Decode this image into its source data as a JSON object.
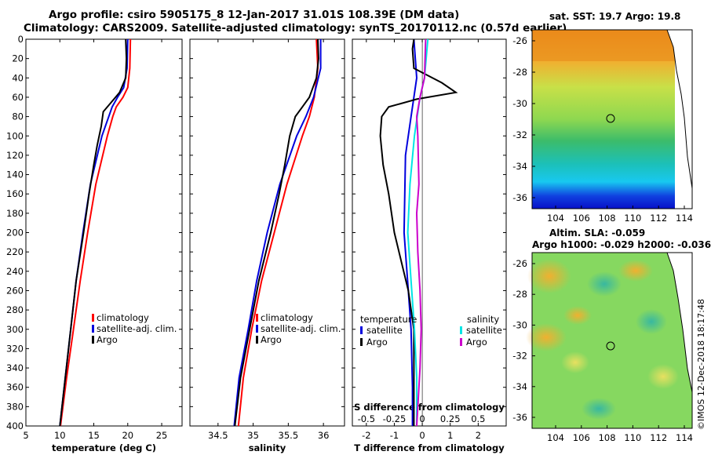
{
  "titles": {
    "line1": "Argo profile: csiro 5905175_8 12-Jan-2017 31.01S 108.39E (DM data)",
    "line2": "Climatology: CARS2009. Satellite-adjusted climatology: synTS_20170112.nc (0.57d earlier)",
    "sst": "sat. SST: 19.7 Argo: 19.8",
    "sla1": "Altim. SLA: -0.059",
    "sla2": "Argo h1000: -0.029 h2000: -0.036",
    "credit": "©IMOS 12-Dec-2018 18:17:48"
  },
  "colors": {
    "clim": "#ff0000",
    "sat": "#0000dd",
    "argo": "#000000",
    "sal_sat": "#00e5e5",
    "sal_argo": "#cc00cc"
  },
  "chart_data": [
    {
      "type": "line",
      "name": "temperature",
      "xlabel": "temperature (deg C)",
      "ylabel": "",
      "xlim": [
        5,
        28
      ],
      "ylim": [
        400,
        0
      ],
      "xticks": [
        "5",
        "10",
        "15",
        "20",
        "25"
      ],
      "yticks": [
        "0",
        "20",
        "40",
        "60",
        "80",
        "100",
        "120",
        "140",
        "160",
        "180",
        "200",
        "220",
        "240",
        "260",
        "280",
        "300",
        "320",
        "340",
        "360",
        "380",
        "400"
      ],
      "legend": [
        "climatology",
        "satellite-adj. clim.",
        "Argo"
      ],
      "series": [
        {
          "name": "climatology",
          "depth": [
            0,
            30,
            50,
            60,
            70,
            80,
            100,
            150,
            200,
            250,
            300,
            350,
            400
          ],
          "values": [
            20.4,
            20.3,
            20,
            19.3,
            18.3,
            17.8,
            17,
            15.3,
            14.1,
            13,
            12,
            11,
            10.1
          ]
        },
        {
          "name": "satellite-adj. clim.",
          "depth": [
            0,
            30,
            50,
            60,
            70,
            80,
            100,
            150,
            200,
            250,
            300,
            350,
            400
          ],
          "values": [
            20,
            19.9,
            19.4,
            18.5,
            17.7,
            17.2,
            16.2,
            14.5,
            13.4,
            12.4,
            11.6,
            10.8,
            10
          ]
        },
        {
          "name": "Argo",
          "depth": [
            0,
            20,
            40,
            50,
            55,
            60,
            65,
            75,
            90,
            110,
            130,
            160,
            200,
            250,
            300,
            350,
            400
          ],
          "values": [
            19.7,
            19.8,
            19.7,
            19.1,
            18.8,
            18.2,
            17.6,
            16.4,
            16.1,
            15.5,
            15,
            14.3,
            13.5,
            12.4,
            11.6,
            10.8,
            10
          ]
        }
      ]
    },
    {
      "type": "line",
      "name": "salinity",
      "xlabel": "salinity",
      "xlim": [
        34.1,
        36.3
      ],
      "ylim": [
        400,
        0
      ],
      "xticks": [
        "34.5",
        "35",
        "35.5",
        "36"
      ],
      "legend": [
        "climatology",
        "satellite-adj. clim.",
        "Argo"
      ],
      "series": [
        {
          "name": "climatology",
          "depth": [
            0,
            30,
            60,
            80,
            100,
            150,
            200,
            250,
            300,
            350,
            400
          ],
          "values": [
            35.9,
            35.92,
            35.87,
            35.8,
            35.7,
            35.48,
            35.3,
            35.12,
            34.98,
            34.86,
            34.79
          ]
        },
        {
          "name": "satellite-adj. clim.",
          "depth": [
            0,
            30,
            60,
            80,
            100,
            150,
            200,
            250,
            300,
            350,
            400
          ],
          "values": [
            35.96,
            35.96,
            35.86,
            35.75,
            35.62,
            35.38,
            35.2,
            35.05,
            34.93,
            34.8,
            34.73
          ]
        },
        {
          "name": "Argo",
          "depth": [
            0,
            20,
            40,
            60,
            70,
            80,
            100,
            130,
            160,
            200,
            250,
            300,
            350,
            400
          ],
          "values": [
            35.92,
            35.93,
            35.9,
            35.8,
            35.7,
            35.6,
            35.52,
            35.45,
            35.37,
            35.25,
            35.08,
            34.95,
            34.82,
            34.74
          ]
        }
      ]
    },
    {
      "type": "line",
      "name": "difference",
      "xlabel": "T difference from climatology",
      "xlabel_top": "S difference from climatology",
      "xlim": [
        -2.5,
        3
      ],
      "ylim": [
        400,
        0
      ],
      "xticks": [
        "-2",
        "-1",
        "0",
        "1",
        "2"
      ],
      "sticks": [
        "-0.5",
        "-0.25",
        "0",
        "0.25",
        "0.5"
      ],
      "legend_left_title": "temperature",
      "legend_right_title": "salinity",
      "legend_left": [
        "satellite",
        "Argo"
      ],
      "legend_right": [
        "satellite",
        "Argo"
      ],
      "series": [
        {
          "name": "temperature satellite",
          "depth": [
            0,
            20,
            40,
            60,
            80,
            120,
            200,
            260,
            300,
            360,
            400
          ],
          "values": [
            -0.3,
            -0.25,
            -0.2,
            -0.3,
            -0.4,
            -0.6,
            -0.65,
            -0.5,
            -0.4,
            -0.35,
            -0.35
          ]
        },
        {
          "name": "temperature Argo",
          "depth": [
            0,
            10,
            30,
            45,
            55,
            62,
            70,
            80,
            100,
            130,
            160,
            200,
            230,
            260,
            300,
            330,
            360,
            400
          ],
          "values": [
            -0.3,
            -0.35,
            -0.3,
            0.7,
            1.2,
            -0.2,
            -1.2,
            -1.45,
            -1.5,
            -1.4,
            -1.2,
            -1,
            -0.75,
            -0.5,
            -0.3,
            -0.3,
            -0.3,
            -0.3
          ]
        },
        {
          "name": "salinity satellite",
          "depth": [
            0,
            40,
            60,
            100,
            150,
            200,
            250,
            300,
            350,
            400
          ],
          "values": [
            0.05,
            0.02,
            -0.02,
            -0.07,
            -0.11,
            -0.13,
            -0.1,
            -0.07,
            -0.05,
            -0.05
          ]
        },
        {
          "name": "salinity Argo",
          "depth": [
            0,
            40,
            60,
            80,
            100,
            150,
            180,
            220,
            260,
            300,
            340,
            400
          ],
          "values": [
            0.03,
            0.02,
            -0.02,
            -0.05,
            -0.04,
            -0.03,
            -0.05,
            -0.04,
            -0.02,
            -0.01,
            -0.02,
            -0.05
          ]
        }
      ]
    }
  ],
  "maps": {
    "sst": {
      "lat_ticks": [
        "-26",
        "-28",
        "-30",
        "-32",
        "-34",
        "-36"
      ],
      "lon_ticks": [
        "104",
        "106",
        "108",
        "110",
        "112",
        "114"
      ]
    },
    "sla": {
      "lat_ticks": [
        "-26",
        "-28",
        "-30",
        "-32",
        "-34",
        "-36"
      ],
      "lon_ticks": [
        "104",
        "106",
        "108",
        "110",
        "112",
        "114"
      ]
    }
  }
}
